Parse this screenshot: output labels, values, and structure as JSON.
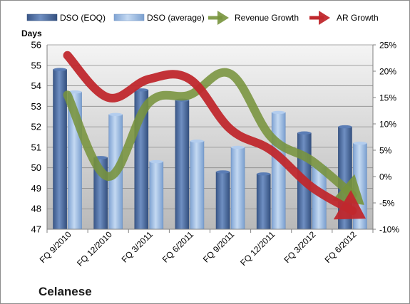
{
  "company_label": "Celanese",
  "chart_data": {
    "type": "bar",
    "categories": [
      "FQ 9/2010",
      "FQ 12/2010",
      "FQ 3/2011",
      "FQ 6/2011",
      "FQ 9/2011",
      "FQ 12/2011",
      "FQ 3/2012",
      "FQ 6/2012"
    ],
    "series": [
      {
        "name": "DSO (EOQ)",
        "axis": "left",
        "type": "bar",
        "color": "#4a6a9e",
        "values": [
          54.8,
          50.5,
          53.8,
          53.3,
          49.8,
          49.7,
          51.7,
          52.0
        ]
      },
      {
        "name": "DSO (average)",
        "axis": "left",
        "type": "bar",
        "color": "#8eb4e3",
        "values": [
          53.7,
          52.6,
          50.3,
          51.3,
          51.0,
          52.7,
          50.1,
          51.2
        ]
      },
      {
        "name": "Revenue Growth",
        "axis": "right",
        "type": "line",
        "unit": "%",
        "color": "#77933c",
        "values": [
          15.5,
          0.0,
          14.0,
          15.5,
          19.5,
          7.5,
          3.0,
          -3.5
        ]
      },
      {
        "name": "AR Growth",
        "axis": "right",
        "type": "line",
        "unit": "%",
        "color": "#c0282d",
        "values": [
          23.0,
          15.0,
          18.5,
          18.5,
          9.0,
          5.0,
          -2.0,
          -6.5
        ]
      }
    ],
    "y_left_title": "Days",
    "y_left_ticks": [
      47,
      48,
      49,
      50,
      51,
      52,
      53,
      54,
      55,
      56
    ],
    "y_left_range": [
      47,
      56
    ],
    "y_right_ticks": [
      "25%",
      "20%",
      "15%",
      "10%",
      "5%",
      "0%",
      "-5%",
      "-10%"
    ],
    "y_right_range": [
      -10,
      25
    ],
    "grid": true,
    "legend_position": "top"
  }
}
